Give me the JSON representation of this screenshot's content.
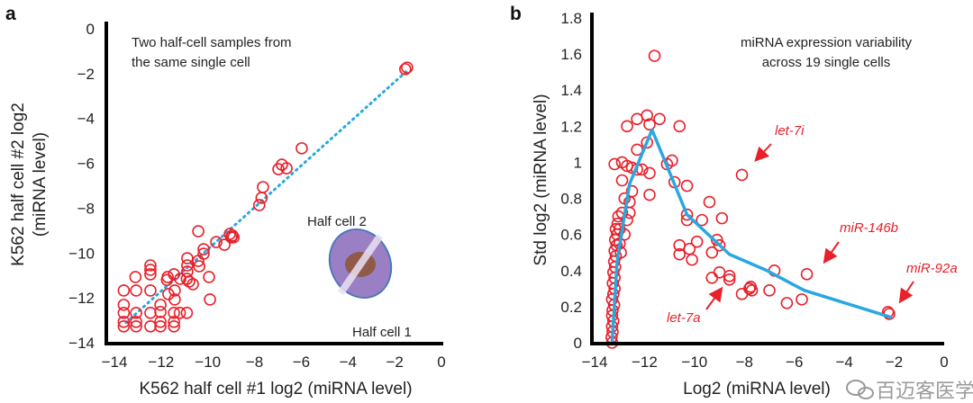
{
  "colors": {
    "point": "#e8202a",
    "fit_line": "#29a8e0",
    "axis": "#000000",
    "cell_outer": "#9b7fc4",
    "cell_inner": "#8f5a4a",
    "cell_ring": "#4a78b8"
  },
  "watermark": "百迈客医学",
  "chart_data": [
    {
      "panel": "a",
      "type": "scatter",
      "annotation": [
        "Two half-cell samples from",
        "the same single cell"
      ],
      "xlabel": "K562 half cell #1 log2 (miRNA level)",
      "ylabel": [
        "K562 half cell #2 log2",
        "(miRNA level)"
      ],
      "xlim": [
        -14,
        0
      ],
      "ylim": [
        -14,
        0
      ],
      "xticks": [
        -14,
        -12,
        -10,
        -8,
        -6,
        -4,
        -2,
        0
      ],
      "yticks": [
        0,
        -2,
        -4,
        -6,
        -8,
        -10,
        -12,
        -14
      ],
      "inset_labels": {
        "top": "Half cell 2",
        "bottom": "Half cell 1"
      },
      "diagonal_line": [
        [
          -13.5,
          -13.1
        ],
        [
          -1.5,
          -1.9
        ]
      ],
      "points": [
        [
          -1.47,
          -1.73
        ],
        [
          -1.55,
          -1.8
        ],
        [
          -5.98,
          -5.33
        ],
        [
          -6.83,
          -6.06
        ],
        [
          -6.63,
          -6.22
        ],
        [
          -6.98,
          -6.26
        ],
        [
          -7.64,
          -7.06
        ],
        [
          -7.7,
          -7.54
        ],
        [
          -7.8,
          -7.86
        ],
        [
          -10.41,
          -9.03
        ],
        [
          -9.06,
          -9.15
        ],
        [
          -8.95,
          -9.22
        ],
        [
          -8.9,
          -9.3
        ],
        [
          -9.0,
          -9.3
        ],
        [
          -9.64,
          -9.51
        ],
        [
          -9.29,
          -9.63
        ],
        [
          -10.18,
          -9.83
        ],
        [
          -10.18,
          -10.03
        ],
        [
          -10.88,
          -10.23
        ],
        [
          -10.41,
          -10.35
        ],
        [
          -10.37,
          -10.59
        ],
        [
          -10.88,
          -10.55
        ],
        [
          -10.88,
          -10.83
        ],
        [
          -12.46,
          -10.55
        ],
        [
          -12.46,
          -10.75
        ],
        [
          -12.46,
          -10.95
        ],
        [
          -13.1,
          -11.07
        ],
        [
          -11.72,
          -11.07
        ],
        [
          -11.75,
          -11.2
        ],
        [
          -11.45,
          -10.95
        ],
        [
          -11.18,
          -11.15
        ],
        [
          -10.9,
          -11.15
        ],
        [
          -10.8,
          -11.27
        ],
        [
          -10.64,
          -11.39
        ],
        [
          -9.95,
          -11.07
        ],
        [
          -13.6,
          -11.67
        ],
        [
          -13.07,
          -11.67
        ],
        [
          -12.46,
          -11.67
        ],
        [
          -11.69,
          -11.83
        ],
        [
          -11.42,
          -11.67
        ],
        [
          -11.42,
          -12.07
        ],
        [
          -12.03,
          -12.31
        ],
        [
          -9.91,
          -12.07
        ],
        [
          -13.6,
          -12.31
        ],
        [
          -13.6,
          -12.67
        ],
        [
          -13.07,
          -12.67
        ],
        [
          -12.46,
          -12.67
        ],
        [
          -12.03,
          -12.63
        ],
        [
          -11.45,
          -12.67
        ],
        [
          -11.2,
          -12.67
        ],
        [
          -10.9,
          -12.67
        ],
        [
          -13.6,
          -13.07
        ],
        [
          -13.6,
          -13.27
        ],
        [
          -13.07,
          -13.07
        ],
        [
          -13.07,
          -13.27
        ],
        [
          -12.46,
          -13.27
        ],
        [
          -12.03,
          -13.07
        ],
        [
          -12.03,
          -13.27
        ],
        [
          -11.45,
          -13.07
        ],
        [
          -11.45,
          -13.27
        ]
      ]
    },
    {
      "panel": "b",
      "type": "scatter",
      "annotation": [
        "miRNA expression variability",
        "across 19 single cells"
      ],
      "xlabel": "Log2 (miRNA level)",
      "ylabel": "Std log2 (miRNA level)",
      "xlim": [
        -14,
        0
      ],
      "ylim": [
        0,
        1.8
      ],
      "xticks": [
        -14,
        -12,
        -10,
        -8,
        -6,
        -4,
        -2,
        0
      ],
      "yticks": [
        0,
        0.2,
        0.4,
        0.6,
        0.8,
        1,
        1.2,
        1.4,
        1.6,
        1.8
      ],
      "labeled_points": [
        {
          "name": "let-7i",
          "x": -8.1,
          "y": 0.93
        },
        {
          "name": "miR-146b",
          "x": -5.5,
          "y": 0.38
        },
        {
          "name": "miR-92a",
          "x": -2.2,
          "y": 0.16
        },
        {
          "name": "let-7a",
          "x": -9.0,
          "y": 0.39
        }
      ],
      "fit_line": [
        [
          -13.3,
          0
        ],
        [
          -13.1,
          0.45
        ],
        [
          -12.6,
          0.88
        ],
        [
          -11.7,
          1.18
        ],
        [
          -10.3,
          0.71
        ],
        [
          -8.6,
          0.49
        ],
        [
          -7.1,
          0.4
        ],
        [
          -5.6,
          0.29
        ],
        [
          -2.1,
          0.14
        ]
      ],
      "points": [
        [
          -11.6,
          1.59
        ],
        [
          -12.7,
          1.2
        ],
        [
          -12.3,
          1.24
        ],
        [
          -11.9,
          1.26
        ],
        [
          -11.8,
          1.21
        ],
        [
          -11.4,
          1.24
        ],
        [
          -10.6,
          1.2
        ],
        [
          -12.3,
          1.07
        ],
        [
          -11.9,
          1.11
        ],
        [
          -13.2,
          0.99
        ],
        [
          -12.9,
          1.0
        ],
        [
          -12.7,
          0.98
        ],
        [
          -12.5,
          0.97
        ],
        [
          -12.3,
          0.96
        ],
        [
          -12.1,
          0.96
        ],
        [
          -11.8,
          0.94
        ],
        [
          -11.8,
          0.82
        ],
        [
          -11.1,
          0.99
        ],
        [
          -10.9,
          1.01
        ],
        [
          -10.8,
          0.89
        ],
        [
          -10.3,
          0.87
        ],
        [
          -9.4,
          0.78
        ],
        [
          -10.3,
          0.71
        ],
        [
          -10.3,
          0.68
        ],
        [
          -9.7,
          0.68
        ],
        [
          -8.9,
          0.69
        ],
        [
          -10.6,
          0.54
        ],
        [
          -10.6,
          0.49
        ],
        [
          -10.2,
          0.52
        ],
        [
          -10.1,
          0.46
        ],
        [
          -9.9,
          0.56
        ],
        [
          -9.1,
          0.57
        ],
        [
          -9.0,
          0.54
        ],
        [
          -9.3,
          0.5
        ],
        [
          -9.3,
          0.36
        ],
        [
          -9.0,
          0.39
        ],
        [
          -8.6,
          0.37
        ],
        [
          -8.6,
          0.35
        ],
        [
          -8.1,
          0.27
        ],
        [
          -7.8,
          0.3
        ],
        [
          -7.75,
          0.31
        ],
        [
          -8.1,
          0.93
        ],
        [
          -6.8,
          0.4
        ],
        [
          -5.5,
          0.38
        ],
        [
          -7.0,
          0.29
        ],
        [
          -6.3,
          0.22
        ],
        [
          -5.7,
          0.24
        ],
        [
          -7.7,
          0.29
        ],
        [
          -2.2,
          0.16
        ],
        [
          -2.25,
          0.17
        ],
        [
          -12.9,
          0.9
        ],
        [
          -12.8,
          0.8
        ],
        [
          -12.6,
          0.78
        ],
        [
          -12.9,
          0.72
        ],
        [
          -12.7,
          0.68
        ],
        [
          -13.0,
          0.63
        ],
        [
          -12.8,
          0.6
        ],
        [
          -13.0,
          0.55
        ],
        [
          -12.95,
          0.5
        ],
        [
          -12.6,
          0.72
        ],
        [
          -12.5,
          0.84
        ],
        [
          -13.3,
          0.0
        ],
        [
          -13.32,
          0.03
        ],
        [
          -13.28,
          0.06
        ],
        [
          -13.3,
          0.09
        ],
        [
          -13.25,
          0.12
        ],
        [
          -13.3,
          0.15
        ],
        [
          -13.28,
          0.18
        ],
        [
          -13.22,
          0.21
        ],
        [
          -13.3,
          0.24
        ],
        [
          -13.25,
          0.27
        ],
        [
          -13.2,
          0.3
        ],
        [
          -13.27,
          0.33
        ],
        [
          -13.2,
          0.36
        ],
        [
          -13.25,
          0.39
        ],
        [
          -13.18,
          0.42
        ],
        [
          -13.22,
          0.45
        ],
        [
          -13.15,
          0.48
        ],
        [
          -13.2,
          0.51
        ],
        [
          -13.12,
          0.54
        ],
        [
          -13.18,
          0.57
        ],
        [
          -13.1,
          0.6
        ],
        [
          -13.15,
          0.63
        ],
        [
          -13.08,
          0.66
        ],
        [
          -13.05,
          0.7
        ]
      ]
    }
  ]
}
